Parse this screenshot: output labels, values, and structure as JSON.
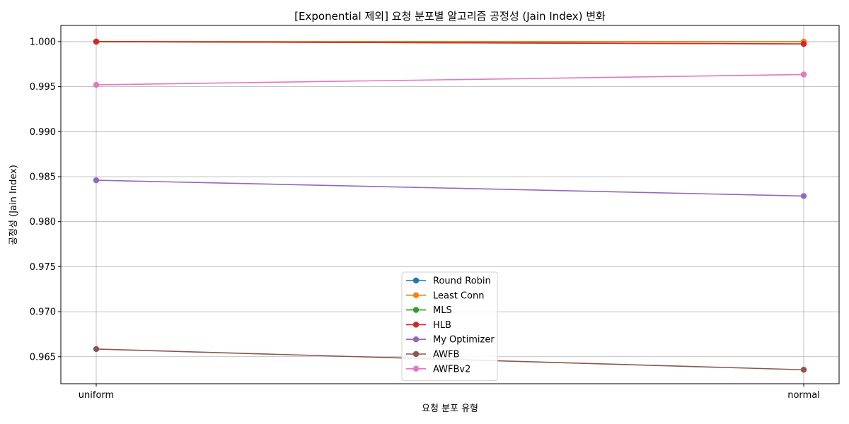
{
  "chart_data": {
    "type": "line",
    "title": "[Exponential 제외] 요청 분포별 알고리즘 공정성 (Jain Index) 변화",
    "xlabel": "요청 분포 유형",
    "ylabel": "공정성 (Jain Index)",
    "categories": [
      "uniform",
      "normal"
    ],
    "ylim": [
      0.962,
      1.0018
    ],
    "yticks": [
      "0.965",
      "0.970",
      "0.975",
      "0.980",
      "0.985",
      "0.990",
      "0.995",
      "1.000"
    ],
    "grid": true,
    "legend_position": "lower-center",
    "series": [
      {
        "name": "Round Robin",
        "color": "#1f77b4",
        "values": [
          1.0,
          1.0
        ]
      },
      {
        "name": "Least Conn",
        "color": "#ff7f0e",
        "values": [
          1.0,
          1.0
        ]
      },
      {
        "name": "MLS",
        "color": "#2ca02c",
        "values": [
          1.0,
          0.99975
        ]
      },
      {
        "name": "HLB",
        "color": "#d62728",
        "values": [
          1.0,
          0.99975
        ]
      },
      {
        "name": "My Optimizer",
        "color": "#9467bd",
        "values": [
          0.9846,
          0.98285
        ]
      },
      {
        "name": "AWFB",
        "color": "#8c564b",
        "values": [
          0.96585,
          0.96355
        ]
      },
      {
        "name": "AWFBv2",
        "color": "#e377c2",
        "values": [
          0.9952,
          0.99635
        ]
      }
    ]
  }
}
